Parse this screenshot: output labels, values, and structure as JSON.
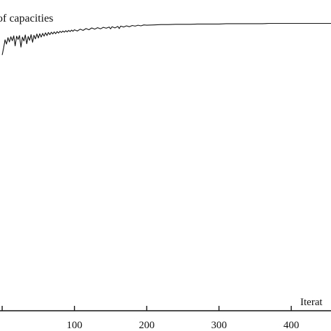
{
  "chart_data": {
    "type": "line",
    "title": "of capacities",
    "xlabel": "Iterat",
    "ylabel": "",
    "xlim": [
      -3,
      455
    ],
    "ylim": [
      0,
      1
    ],
    "grid": false,
    "legend": "none",
    "x_ticks": [
      {
        "value": 100,
        "label": "100"
      },
      {
        "value": 200,
        "label": "200"
      },
      {
        "value": 300,
        "label": "300"
      },
      {
        "value": 400,
        "label": "400"
      }
    ],
    "series": [
      {
        "values": [
          [
            0,
            0.842
          ],
          [
            2,
            0.865
          ],
          [
            4,
            0.892
          ],
          [
            6,
            0.878
          ],
          [
            8,
            0.899
          ],
          [
            10,
            0.885
          ],
          [
            12,
            0.902
          ],
          [
            14,
            0.889
          ],
          [
            16,
            0.905
          ],
          [
            18,
            0.872
          ],
          [
            20,
            0.904
          ],
          [
            22,
            0.893
          ],
          [
            24,
            0.906
          ],
          [
            26,
            0.868
          ],
          [
            28,
            0.901
          ],
          [
            30,
            0.888
          ],
          [
            32,
            0.908
          ],
          [
            34,
            0.879
          ],
          [
            36,
            0.903
          ],
          [
            38,
            0.89
          ],
          [
            40,
            0.909
          ],
          [
            42,
            0.884
          ],
          [
            44,
            0.907
          ],
          [
            46,
            0.895
          ],
          [
            48,
            0.911
          ],
          [
            50,
            0.898
          ],
          [
            52,
            0.912
          ],
          [
            54,
            0.901
          ],
          [
            56,
            0.913
          ],
          [
            58,
            0.904
          ],
          [
            60,
            0.915
          ],
          [
            62,
            0.906
          ],
          [
            64,
            0.916
          ],
          [
            66,
            0.909
          ],
          [
            68,
            0.917
          ],
          [
            70,
            0.911
          ],
          [
            72,
            0.918
          ],
          [
            74,
            0.912
          ],
          [
            76,
            0.919
          ],
          [
            78,
            0.914
          ],
          [
            80,
            0.92
          ],
          [
            82,
            0.916
          ],
          [
            84,
            0.921
          ],
          [
            86,
            0.917
          ],
          [
            88,
            0.922
          ],
          [
            90,
            0.918
          ],
          [
            92,
            0.923
          ],
          [
            94,
            0.919
          ],
          [
            96,
            0.924
          ],
          [
            98,
            0.92
          ],
          [
            100,
            0.925
          ],
          [
            104,
            0.921
          ],
          [
            108,
            0.927
          ],
          [
            112,
            0.923
          ],
          [
            116,
            0.929
          ],
          [
            120,
            0.925
          ],
          [
            124,
            0.931
          ],
          [
            128,
            0.927
          ],
          [
            132,
            0.932
          ],
          [
            136,
            0.928
          ],
          [
            140,
            0.933
          ],
          [
            144,
            0.93
          ],
          [
            148,
            0.934
          ],
          [
            150,
            0.928
          ],
          [
            152,
            0.935
          ],
          [
            156,
            0.931
          ],
          [
            160,
            0.936
          ],
          [
            162,
            0.929
          ],
          [
            164,
            0.937
          ],
          [
            168,
            0.934
          ],
          [
            172,
            0.938
          ],
          [
            176,
            0.935
          ],
          [
            180,
            0.939
          ],
          [
            184,
            0.937
          ],
          [
            188,
            0.94
          ],
          [
            192,
            0.938
          ],
          [
            196,
            0.941
          ],
          [
            200,
            0.94
          ],
          [
            210,
            0.941
          ],
          [
            220,
            0.942
          ],
          [
            230,
            0.942
          ],
          [
            240,
            0.943
          ],
          [
            250,
            0.943
          ],
          [
            260,
            0.943
          ],
          [
            270,
            0.944
          ],
          [
            280,
            0.944
          ],
          [
            290,
            0.944
          ],
          [
            300,
            0.944
          ],
          [
            310,
            0.945
          ],
          [
            320,
            0.945
          ],
          [
            330,
            0.945
          ],
          [
            340,
            0.945
          ],
          [
            350,
            0.945
          ],
          [
            360,
            0.945
          ],
          [
            370,
            0.946
          ],
          [
            380,
            0.946
          ],
          [
            390,
            0.946
          ],
          [
            400,
            0.946
          ],
          [
            410,
            0.946
          ],
          [
            420,
            0.946
          ],
          [
            430,
            0.946
          ],
          [
            440,
            0.946
          ],
          [
            450,
            0.946
          ],
          [
            455,
            0.946
          ]
        ]
      }
    ]
  }
}
